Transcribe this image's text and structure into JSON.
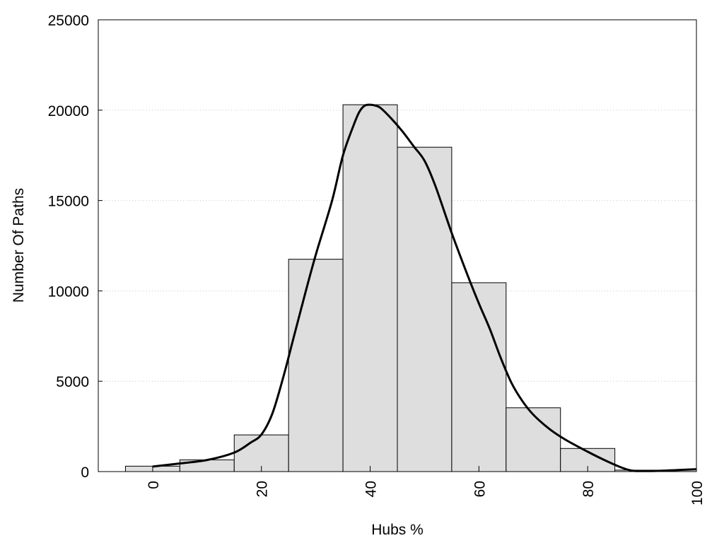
{
  "chart_data": {
    "type": "bar",
    "title": "",
    "xlabel": "Hubs %",
    "ylabel": "Number Of Paths",
    "xlim": [
      -10,
      100
    ],
    "ylim": [
      0,
      25000
    ],
    "x_ticks": [
      0,
      20,
      40,
      60,
      80,
      100
    ],
    "y_ticks": [
      0,
      5000,
      10000,
      15000,
      20000,
      25000
    ],
    "grid": "horizontal-dotted",
    "bin_width": 10,
    "bins": [
      {
        "center": 0,
        "value": 300
      },
      {
        "center": 10,
        "value": 650
      },
      {
        "center": 20,
        "value": 2030
      },
      {
        "center": 30,
        "value": 11750
      },
      {
        "center": 40,
        "value": 20300
      },
      {
        "center": 50,
        "value": 17950
      },
      {
        "center": 60,
        "value": 10450
      },
      {
        "center": 70,
        "value": 3530
      },
      {
        "center": 80,
        "value": 1280
      },
      {
        "center": 90,
        "value": 80
      },
      {
        "center": 100,
        "value": 100
      }
    ],
    "density_curve": {
      "x": [
        0,
        5,
        10,
        15,
        18,
        20,
        22,
        24,
        26,
        28,
        30,
        33,
        35,
        37,
        38,
        39,
        40,
        41,
        42,
        44,
        46,
        48,
        50,
        52,
        55,
        58,
        60,
        62,
        64,
        66,
        68,
        70,
        73,
        76,
        80,
        83,
        86,
        88,
        90,
        93,
        96,
        100
      ],
      "y": [
        280,
        450,
        640,
        1050,
        1600,
        2050,
        3200,
        5200,
        7500,
        9800,
        12000,
        15000,
        17500,
        19200,
        19900,
        20250,
        20300,
        20250,
        20100,
        19500,
        18800,
        18000,
        17200,
        15800,
        13200,
        10800,
        9300,
        7900,
        6300,
        4900,
        3900,
        3150,
        2350,
        1750,
        1100,
        650,
        250,
        60,
        30,
        40,
        80,
        130
      ]
    },
    "series": [
      {
        "name": "",
        "kind": "histogram",
        "fill": "#dedede",
        "stroke": "#000000"
      },
      {
        "name": "",
        "kind": "density-curve",
        "stroke": "#000000"
      }
    ]
  }
}
